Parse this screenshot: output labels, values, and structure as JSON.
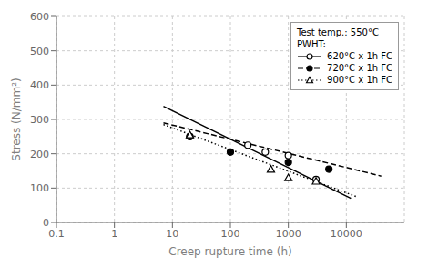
{
  "chart_data": {
    "type": "line",
    "xlabel": "Creep rupture time (h)",
    "ylabel": "Stress (N/mm²)",
    "log": "x",
    "xlim": [
      0.1,
      100000
    ],
    "xticks": [
      0.1,
      1,
      10,
      100,
      1000,
      10000
    ],
    "ylim": [
      0,
      600
    ],
    "yticks": [
      0,
      100,
      200,
      300,
      400,
      500,
      600
    ],
    "grid": true,
    "legend": "upper right",
    "legend_title": "Test temp.: 550°C\nPWHT:",
    "series": [
      {
        "name": "620°C x 1h FC",
        "color": "black",
        "marker": "circle_open",
        "line_style": "solid",
        "x": [
          20,
          200,
          400,
          1000,
          3000
        ],
        "values": [
          250,
          225,
          205,
          195,
          125
        ],
        "fit_x": [
          7,
          12000
        ],
        "fit_values": [
          338,
          70
        ]
      },
      {
        "name": "720°C x 1h FC",
        "color": "black",
        "marker": "circle",
        "line_style": "dashed",
        "x": [
          20,
          100,
          1000,
          5000
        ],
        "values": [
          250,
          205,
          175,
          155
        ],
        "fit_x": [
          7,
          40000
        ],
        "fit_values": [
          290,
          135
        ]
      },
      {
        "name": "900°C x 1h FC",
        "color": "black",
        "marker": "triangle_open",
        "line_style": "dotted",
        "x": [
          20,
          500,
          1000,
          3000
        ],
        "values": [
          255,
          155,
          130,
          120
        ],
        "fit_x": [
          7,
          15000
        ],
        "fit_values": [
          285,
          75
        ]
      }
    ]
  }
}
